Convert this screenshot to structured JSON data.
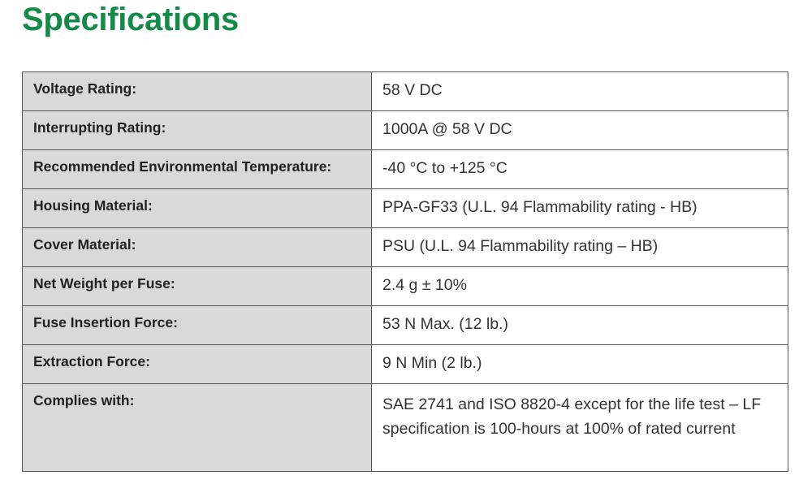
{
  "header": {
    "title": "Specifications"
  },
  "table": {
    "rows": [
      [
        "Voltage Rating:",
        "58 V DC"
      ],
      [
        "Interrupting Rating:",
        "1000A @ 58 V DC"
      ],
      [
        "Recommended Environmental Temperature:",
        "-40 °C to +125 °C"
      ],
      [
        "Housing Material:",
        "PPA-GF33 (U.L. 94 Flammability rating - HB)"
      ],
      [
        "Cover Material:",
        "PSU (U.L. 94 Flammability rating – HB)"
      ],
      [
        "Net Weight per Fuse:",
        "2.4 g ± 10%"
      ],
      [
        "Fuse Insertion Force:",
        "53 N Max. (12 lb.)"
      ],
      [
        "Extraction Force:",
        "9 N Min (2 lb.)"
      ],
      [
        "Complies with:",
        "SAE 2741 and ISO 8820-4 except for the life test – LF specification is 100-hours at 100% of rated current"
      ]
    ]
  }
}
